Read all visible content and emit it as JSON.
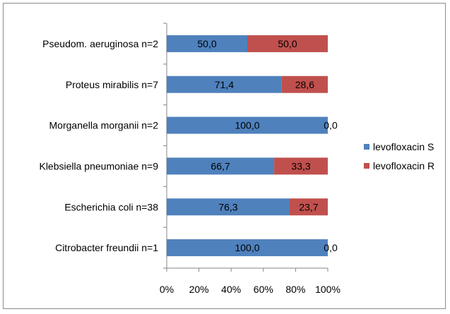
{
  "chart_data": {
    "type": "bar",
    "orientation": "horizontal",
    "stacked": "percent",
    "categories": [
      "Citrobacter freundii n=1",
      "Escherichia coli n=38",
      "Klebsiella pneumoniae n=9",
      "Morganella morganii n=2",
      "Proteus mirabilis n=7",
      "Pseudom. aeruginosa n=2"
    ],
    "series": [
      {
        "name": "levofloxacin S",
        "color": "#4f81bd",
        "values": [
          100.0,
          76.3,
          66.7,
          100.0,
          71.4,
          50.0
        ],
        "labels": [
          "100,0",
          "76,3",
          "66,7",
          "100,0",
          "71,4",
          "50,0"
        ]
      },
      {
        "name": "levofloxacin R",
        "color": "#c0504d",
        "values": [
          0.0,
          23.7,
          33.3,
          0.0,
          28.6,
          50.0
        ],
        "labels": [
          "0,0",
          "23,7",
          "33,3",
          "0,0",
          "28,6",
          "50,0"
        ]
      }
    ],
    "x_ticks": [
      "0%",
      "20%",
      "40%",
      "60%",
      "80%",
      "100%"
    ],
    "xlim": [
      0,
      100
    ],
    "grid": false,
    "legend": "right"
  }
}
